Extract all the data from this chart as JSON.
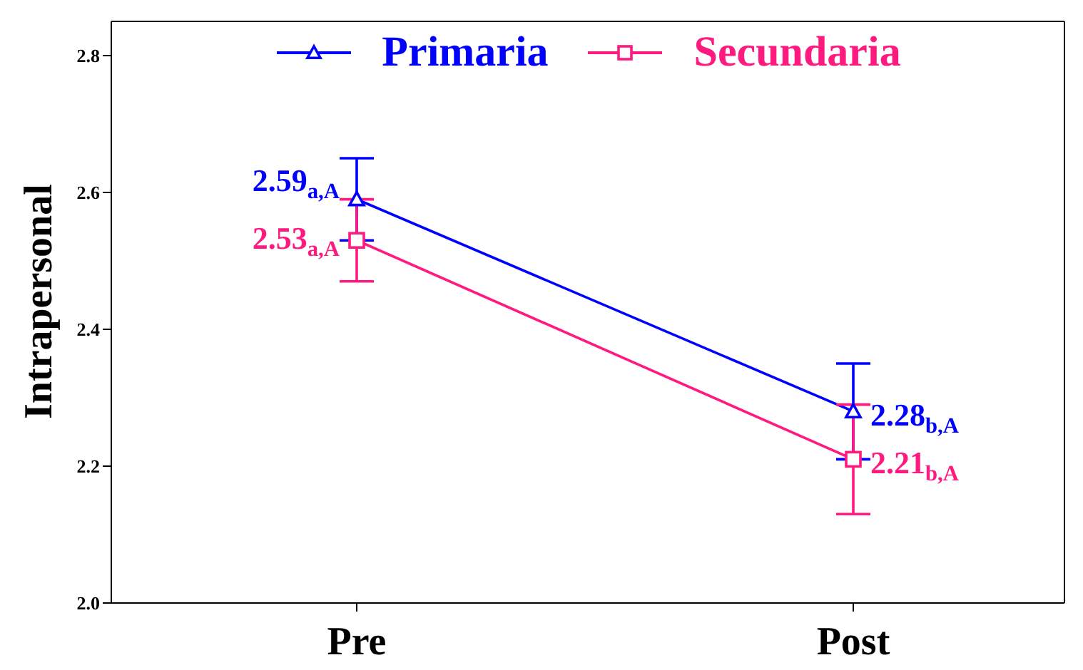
{
  "chart_data": {
    "type": "line",
    "ylabel": "Intrapersonal",
    "categories": [
      "Pre",
      "Post"
    ],
    "series": [
      {
        "name": "Primaria",
        "color": "#0000ff",
        "marker": "triangle",
        "values": [
          2.59,
          2.28
        ],
        "errors": [
          0.06,
          0.07
        ],
        "value_labels": [
          "2.59$_{a,A}$",
          "2.28$_{b,A}$"
        ]
      },
      {
        "name": "Secundaria",
        "color": "#ff1a80",
        "marker": "square",
        "values": [
          2.53,
          2.21
        ],
        "errors": [
          0.06,
          0.08
        ],
        "value_labels": [
          "2.53$_{a,A}$",
          "2.21$_{b,A}$"
        ]
      }
    ],
    "ylim": [
      2.0,
      2.85
    ],
    "yticks": [
      {
        "value": 2.0,
        "label": "2.0"
      },
      {
        "value": 2.2,
        "label": "2.2"
      },
      {
        "value": 2.4,
        "label": "2.4"
      },
      {
        "value": 2.6,
        "label": "2.6"
      },
      {
        "value": 2.8,
        "label": "2.8"
      }
    ],
    "grid": false,
    "legend": "top",
    "line_style": "solid"
  }
}
